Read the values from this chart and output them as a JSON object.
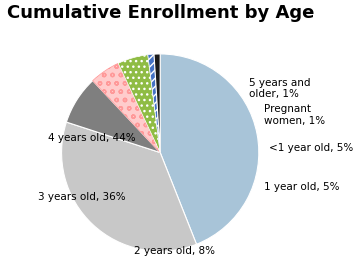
{
  "title": "Cumulative Enrollment by Age",
  "labels": [
    "4 years old, 44%",
    "3 years old, 36%",
    "2 years old, 8%",
    "1 year old, 5%",
    "<1 year old, 5%",
    "Pregnant\nwomen, 1%",
    "5 years and\nolder, 1%"
  ],
  "values": [
    44,
    36,
    8,
    5,
    5,
    1,
    1
  ],
  "colors": [
    "#a8c4d8",
    "#c8c8c8",
    "#7f7f7f",
    "#ffcccc",
    "#8fbc44",
    "#4472c4",
    "#1a1a1a"
  ],
  "hatch": [
    "",
    "",
    "",
    "o o",
    "...",
    "////",
    ""
  ],
  "startangle": 90,
  "title_fontsize": 13,
  "label_fontsize": 7.5,
  "background_color": "#ffffff"
}
